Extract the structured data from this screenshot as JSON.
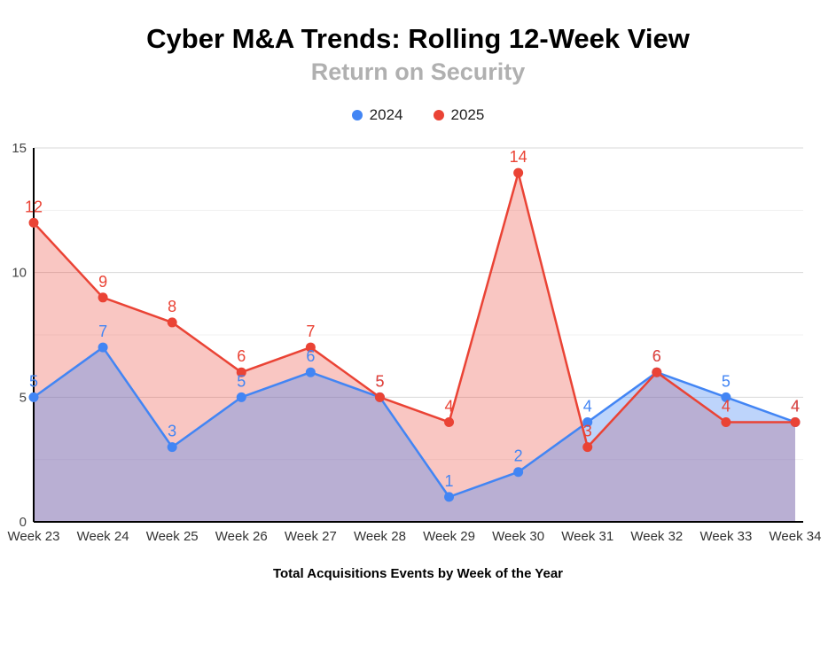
{
  "title": "Cyber M&A Trends: Rolling 12-Week View",
  "subtitle": "Return on Security",
  "legend": [
    {
      "label": "2024",
      "color": "#4285F4"
    },
    {
      "label": "2025",
      "color": "#EA4335"
    }
  ],
  "x_axis_title": "Total Acquisitions Events by Week of the Year",
  "colors": {
    "axis": "#000000",
    "grid_major": "#d9d9d9",
    "grid_minor": "#f1f1f1",
    "tick_label": "#444444",
    "x_label": "#333333"
  },
  "chart_data": {
    "type": "area",
    "title": "Cyber M&A Trends: Rolling 12-Week View",
    "subtitle": "Return on Security",
    "xlabel": "Total Acquisitions Events by Week of the Year",
    "ylabel": "",
    "categories": [
      "Week 23",
      "Week 24",
      "Week 25",
      "Week 26",
      "Week 27",
      "Week 28",
      "Week 29",
      "Week 30",
      "Week 31",
      "Week 32",
      "Week 33",
      "Week 34"
    ],
    "series": [
      {
        "name": "2024",
        "color": "#4285F4",
        "fill": "rgba(66,133,244,0.35)",
        "values": [
          5,
          7,
          3,
          5,
          6,
          5,
          1,
          2,
          4,
          6,
          5,
          4
        ]
      },
      {
        "name": "2025",
        "color": "#EA4335",
        "fill": "rgba(234,67,53,0.30)",
        "values": [
          12,
          9,
          8,
          6,
          7,
          5,
          4,
          14,
          3,
          6,
          4,
          4
        ]
      }
    ],
    "ylim": [
      0,
      15
    ],
    "yticks": [
      0,
      5,
      10,
      15
    ],
    "minor_yticks": [
      2.5,
      7.5,
      12.5
    ],
    "grid": true,
    "legend_position": "top",
    "data_labels": true
  }
}
